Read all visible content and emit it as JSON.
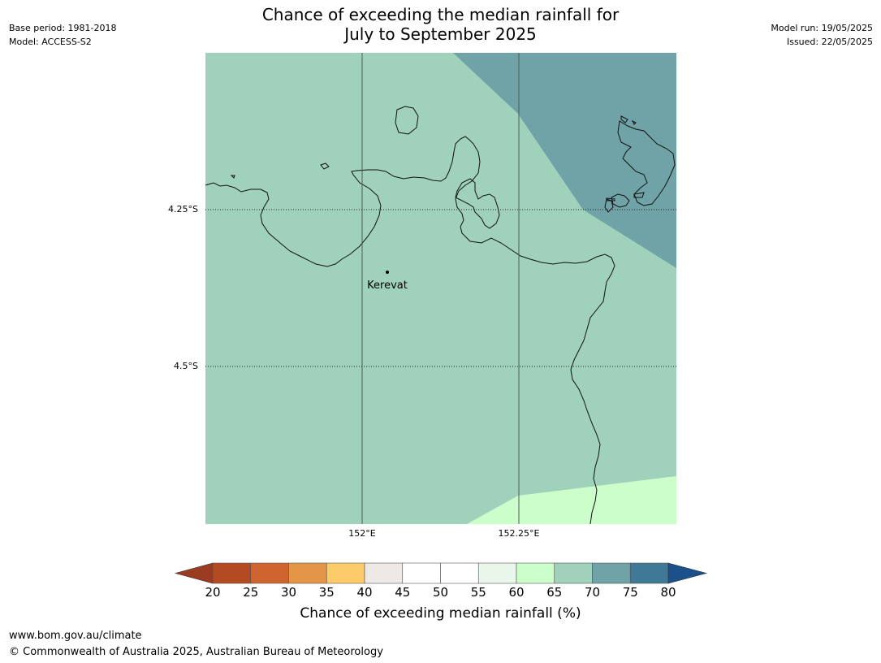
{
  "title": {
    "line1": "Chance of exceeding the median rainfall for",
    "line2": "July to September 2025"
  },
  "meta_left": {
    "base_period": "Base period: 1981-2018",
    "model": "Model: ACCESS-S2"
  },
  "meta_right": {
    "model_run": "Model run: 19/05/2025",
    "issued": "Issued: 22/05/2025"
  },
  "map": {
    "latitude_labels": [
      "4.25°S",
      "4.5°S"
    ],
    "longitude_labels": [
      "152°E",
      "152.25°E"
    ],
    "places": [
      {
        "name": "Kerevat"
      }
    ],
    "region_colors": {
      "base_65_70": "#9fd1bb",
      "high_70_75": "#6fa3a7",
      "low_60_65": "#ccfecb"
    }
  },
  "colorbar": {
    "ticks": [
      "20",
      "25",
      "30",
      "35",
      "40",
      "45",
      "50",
      "55",
      "60",
      "65",
      "70",
      "75",
      "80"
    ],
    "colors": [
      "#9b3b22",
      "#b44a22",
      "#d06431",
      "#e49646",
      "#fecb69",
      "#ede9e6",
      "#ffffff",
      "#ffffff",
      "#eaf6ea",
      "#ccfecb",
      "#9fd1bb",
      "#6fa3a7",
      "#407897",
      "#1b508b"
    ],
    "label": "Chance of exceeding median rainfall (%)"
  },
  "footer": {
    "url": "www.bom.gov.au/climate",
    "copyright": "© Commonwealth of Australia 2025, Australian Bureau of Meteorology"
  }
}
